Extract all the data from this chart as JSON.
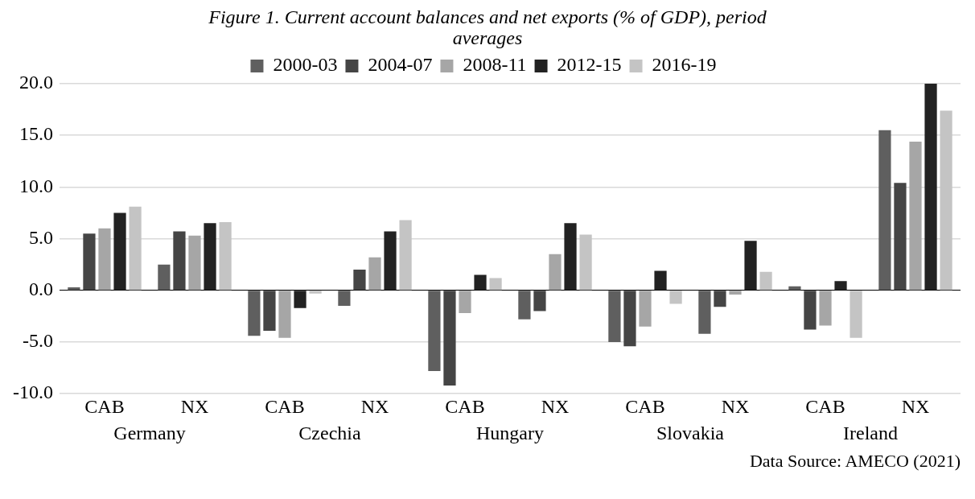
{
  "chart_data": {
    "type": "bar",
    "title": "Figure 1. Current account balances and net exports (% of GDP), period averages",
    "categories": [
      "CAB",
      "NX",
      "CAB",
      "NX",
      "CAB",
      "NX",
      "CAB",
      "NX",
      "CAB",
      "NX"
    ],
    "series": [
      {
        "name": "2000-03",
        "color": "#5f5f5f",
        "values": [
          0.3,
          2.5,
          -4.4,
          -1.5,
          -7.8,
          -2.8,
          -5.0,
          -4.2,
          0.4,
          15.5
        ]
      },
      {
        "name": "2004-07",
        "color": "#454545",
        "values": [
          5.5,
          5.7,
          -3.9,
          2.0,
          -9.2,
          -2.0,
          -5.4,
          -1.6,
          -3.8,
          10.4
        ]
      },
      {
        "name": "2008-11",
        "color": "#a6a6a6",
        "values": [
          6.0,
          5.3,
          -4.6,
          3.2,
          -2.2,
          3.5,
          -3.5,
          -0.4,
          -3.4,
          14.4
        ]
      },
      {
        "name": "2012-15",
        "color": "#222222",
        "values": [
          7.5,
          6.5,
          -1.7,
          5.7,
          1.5,
          6.5,
          1.9,
          4.8,
          0.9,
          20.0
        ]
      },
      {
        "name": "2016-19",
        "color": "#c4c4c4",
        "values": [
          8.1,
          6.6,
          -0.3,
          6.8,
          1.2,
          5.4,
          -1.3,
          1.8,
          -4.6,
          17.4
        ]
      }
    ],
    "ylim": [
      -10,
      20
    ],
    "yticks": [
      {
        "value": -10,
        "label": "-10.0"
      },
      {
        "value": -5,
        "label": "-5.0"
      },
      {
        "value": 0,
        "label": "0.0"
      },
      {
        "value": 5,
        "label": "5.0"
      },
      {
        "value": 10,
        "label": "10.0"
      },
      {
        "value": 15,
        "label": "15.0"
      },
      {
        "value": 20,
        "label": "20.0"
      }
    ],
    "grid": "y",
    "legend": "top",
    "annotations": [
      "Germany",
      "Czechia",
      "Hungary",
      "Slovakia",
      "Ireland",
      "Data Source: AMECO (2021)"
    ]
  }
}
